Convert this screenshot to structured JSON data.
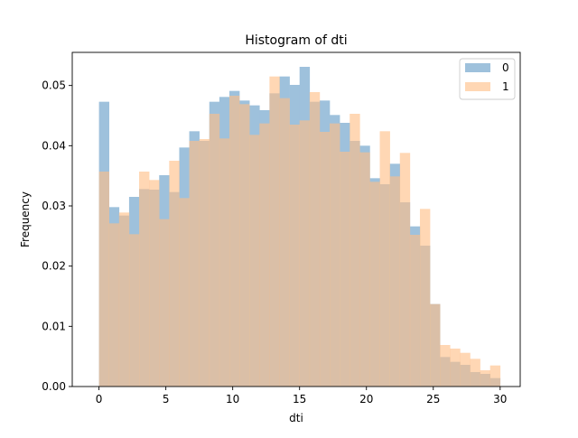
{
  "chart_data": {
    "type": "bar",
    "title": "Histogram of dti",
    "xlabel": "dti",
    "ylabel": "Frequency",
    "xlim": [
      -2,
      31.5
    ],
    "ylim": [
      0,
      0.0555
    ],
    "x_ticks": [
      0,
      5,
      10,
      15,
      20,
      25,
      30
    ],
    "y_ticks": [
      0.0,
      0.01,
      0.02,
      0.03,
      0.04,
      0.05
    ],
    "y_tick_labels": [
      "0.00",
      "0.01",
      "0.02",
      "0.03",
      "0.04",
      "0.05"
    ],
    "bin_edges": [
      0,
      0.75,
      1.5,
      2.25,
      3,
      3.75,
      4.5,
      5.25,
      6,
      6.75,
      7.5,
      8.25,
      9,
      9.75,
      10.5,
      11.25,
      12,
      12.75,
      13.5,
      14.25,
      15,
      15.75,
      16.5,
      17.25,
      18,
      18.75,
      19.5,
      20.25,
      21,
      21.75,
      22.5,
      23.25,
      24,
      24.75,
      25.5,
      26.25,
      27,
      27.75,
      28.5,
      29.25,
      30
    ],
    "legend_position": "top-right",
    "series": [
      {
        "name": "0",
        "color": "#9ec1dc",
        "values": [
          0.0473,
          0.0298,
          0.0284,
          0.0315,
          0.0328,
          0.0327,
          0.0351,
          0.0323,
          0.0397,
          0.0424,
          0.0408,
          0.0473,
          0.0481,
          0.0491,
          0.0475,
          0.0467,
          0.0459,
          0.0487,
          0.0515,
          0.0501,
          0.0531,
          0.0473,
          0.0475,
          0.0451,
          0.0438,
          0.0408,
          0.04,
          0.0346,
          0.0336,
          0.037,
          0.0306,
          0.0266,
          0.0234,
          0.0137,
          0.0049,
          0.0041,
          0.0036,
          0.0024,
          0.0021,
          0.0014
        ]
      },
      {
        "name": "1",
        "color": "#ffbf86",
        "values": [
          0.0357,
          0.0271,
          0.0289,
          0.0253,
          0.0357,
          0.0343,
          0.0278,
          0.0375,
          0.0313,
          0.0408,
          0.0411,
          0.0453,
          0.0412,
          0.0483,
          0.0469,
          0.0418,
          0.0437,
          0.0515,
          0.0479,
          0.0435,
          0.0442,
          0.0489,
          0.0423,
          0.0437,
          0.039,
          0.0453,
          0.0389,
          0.034,
          0.0424,
          0.0349,
          0.0388,
          0.0252,
          0.0295,
          0.0137,
          0.0069,
          0.0063,
          0.0056,
          0.0046,
          0.0027,
          0.0035
        ]
      }
    ]
  }
}
